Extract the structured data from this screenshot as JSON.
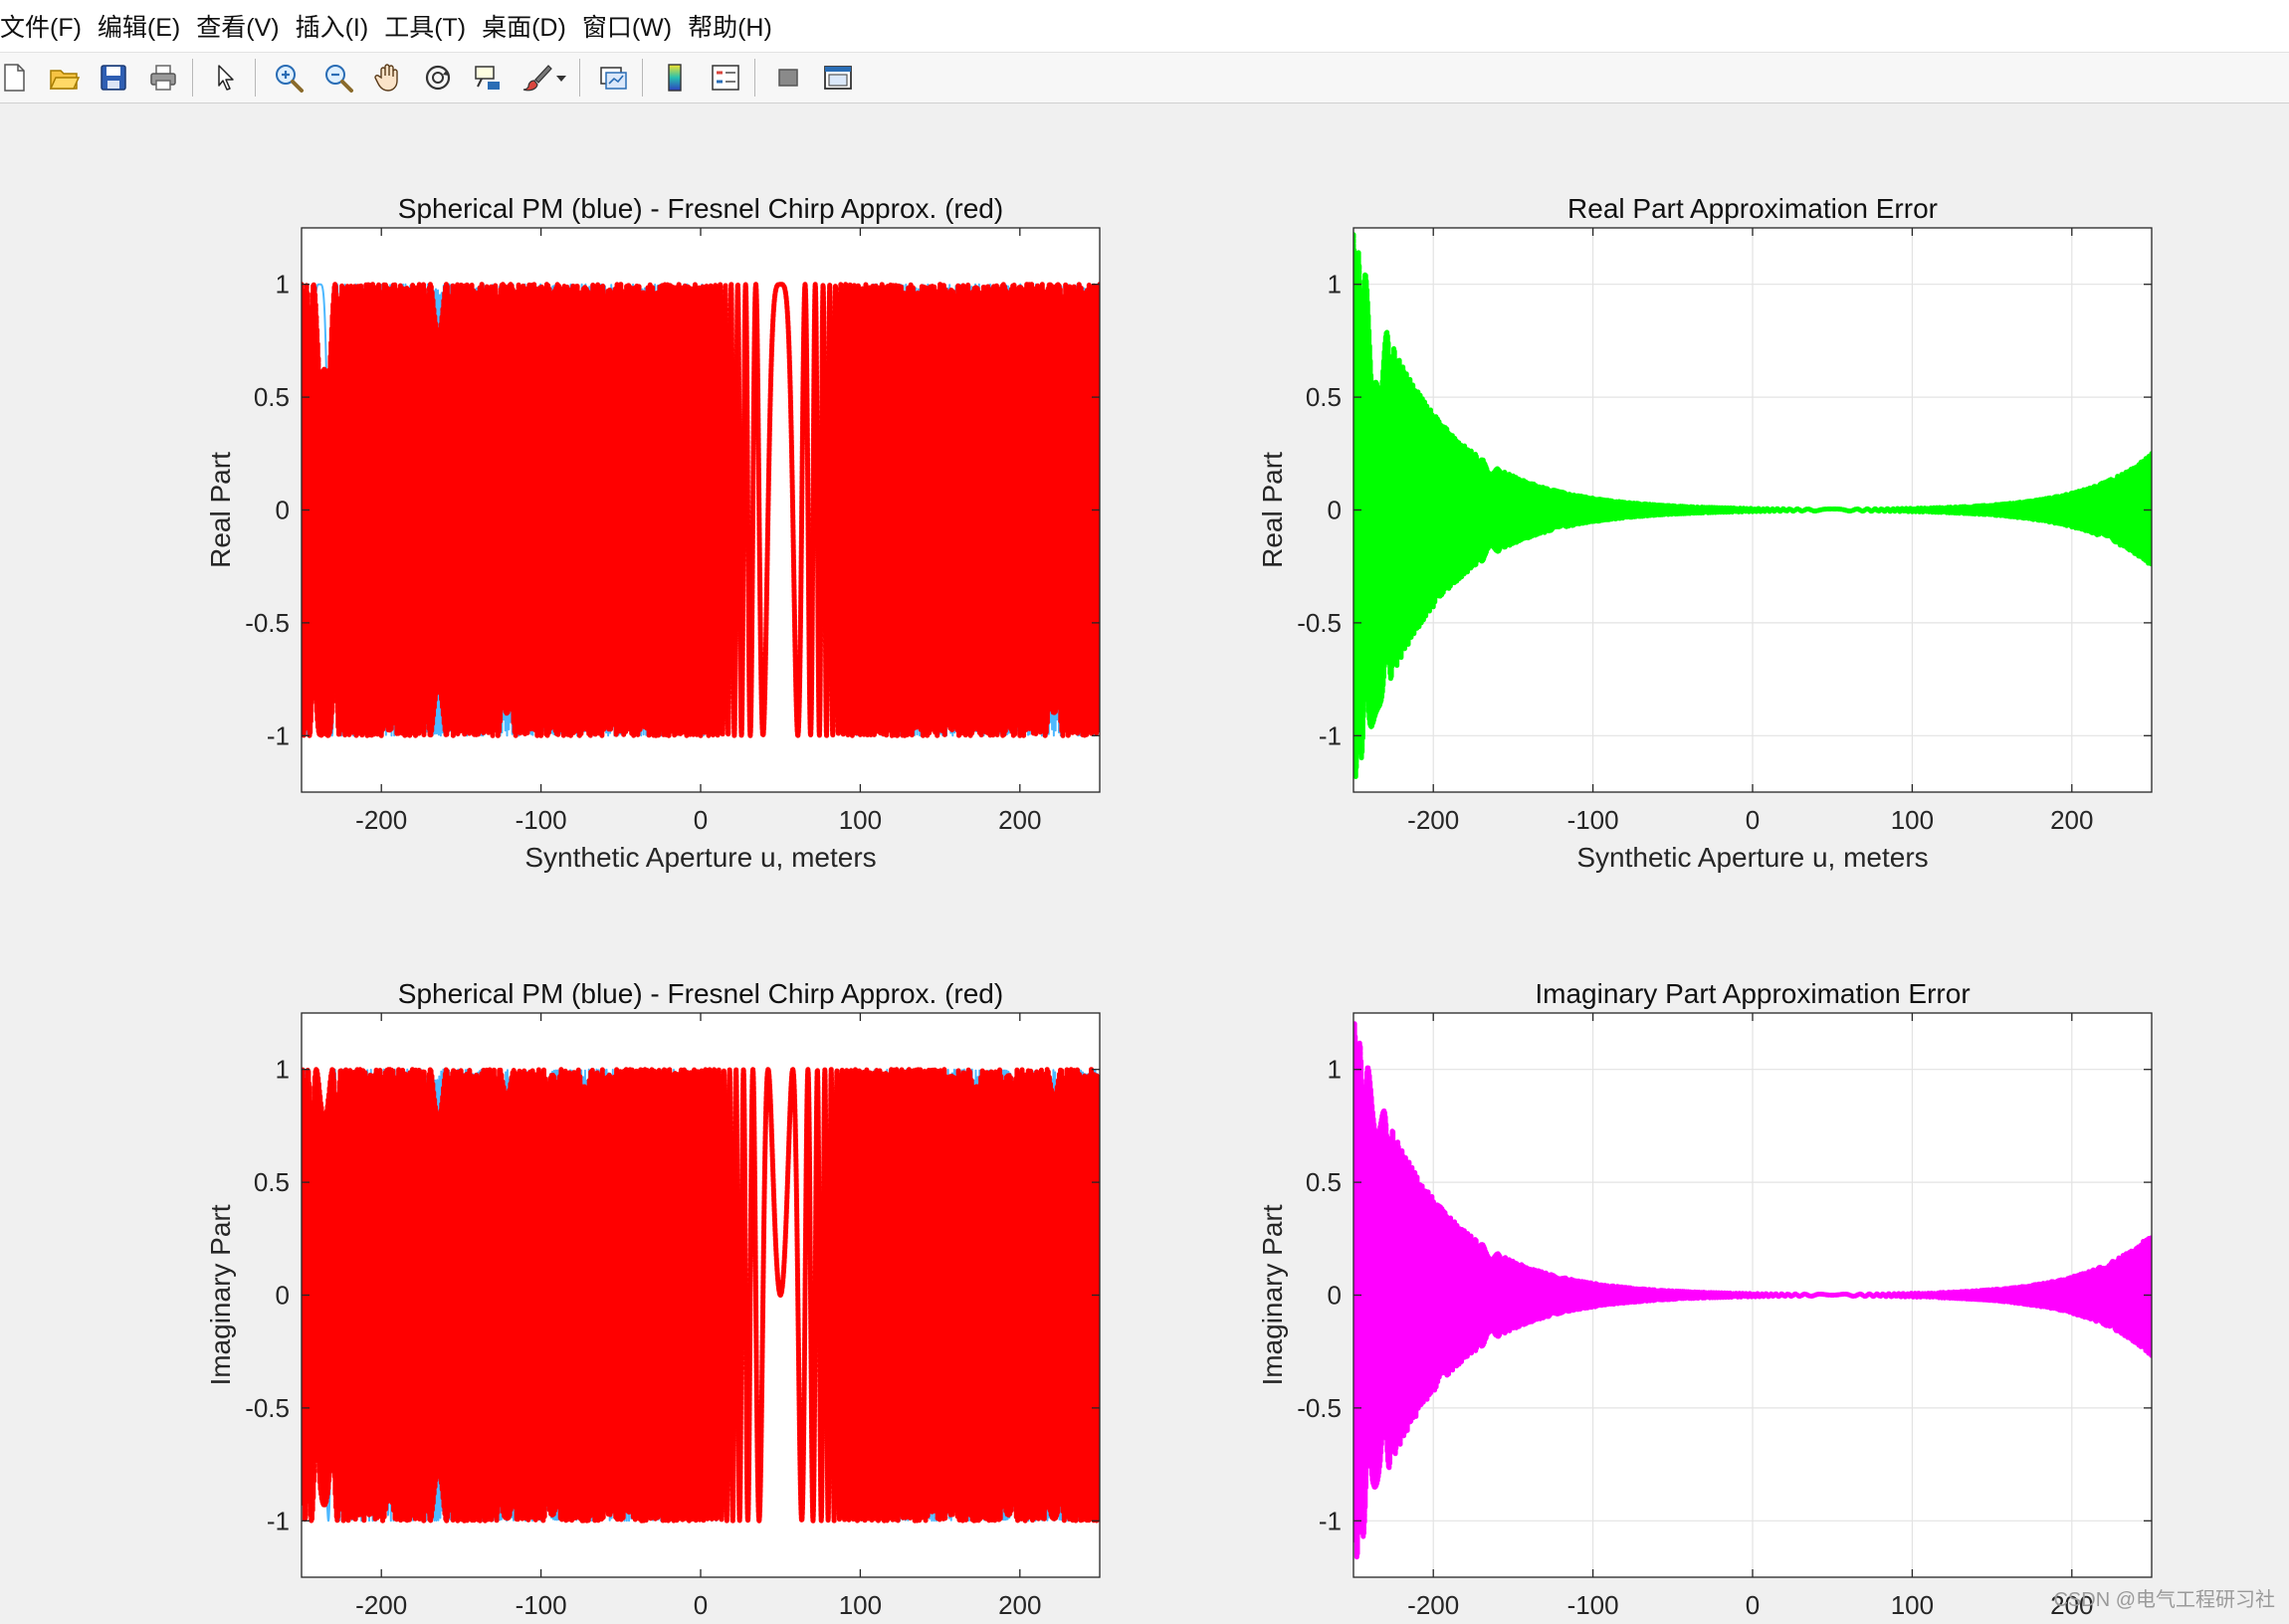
{
  "menu": [
    "文件(F)",
    "编辑(E)",
    "查看(V)",
    "插入(I)",
    "工具(T)",
    "桌面(D)",
    "窗口(W)",
    "帮助(H)"
  ],
  "toolbar": {
    "icons": [
      "new-figure-icon",
      "open-file-icon",
      "save-icon",
      "print-icon",
      "select-arrow-icon",
      "zoom-in-icon",
      "zoom-out-icon",
      "pan-hand-icon",
      "rotate-3d-icon",
      "data-cursor-icon",
      "brush-icon",
      "brush-dropdown-icon",
      "link-plot-icon",
      "colorbar-icon",
      "legend-icon",
      "hide-plot-tools-icon",
      "show-plot-tools-icon"
    ]
  },
  "watermark": "CSDN @电气工程研习社",
  "chart_data": [
    {
      "type": "line",
      "title": "Spherical PM (blue) - Fresnel Chirp Approx. (red)",
      "xlabel": "Synthetic Aperture u, meters",
      "ylabel": "Real Part",
      "xlim": [
        -250,
        250
      ],
      "ylim": [
        -1.25,
        1.25
      ],
      "xticks": [
        "-200",
        "-100",
        "0",
        "100",
        "200"
      ],
      "yticks": [
        "-1",
        "-0.5",
        "0",
        "0.5",
        "1"
      ],
      "grid": false,
      "series": [
        {
          "component": "real",
          "kind": "spherical",
          "color": "#4db8ff",
          "style": "solid",
          "stroke_px": 2,
          "amplitude": 1,
          "center": 50,
          "chirp_k": 0.0042
        },
        {
          "component": "real",
          "kind": "fresnel",
          "color": "#ff0000",
          "style": "dotted",
          "stroke_px": 5,
          "amplitude": 1,
          "center": 50,
          "chirp_k": 0.0042
        }
      ]
    },
    {
      "type": "line",
      "title": "Real Part Approximation Error",
      "xlabel": "Synthetic Aperture u, meters",
      "ylabel": "Real Part",
      "xlim": [
        -250,
        250
      ],
      "ylim": [
        -1.25,
        1.25
      ],
      "xticks": [
        "-200",
        "-100",
        "0",
        "100",
        "200"
      ],
      "yticks": [
        "-1",
        "-0.5",
        "0",
        "0.5",
        "1"
      ],
      "grid": true,
      "series": [
        {
          "component": "real",
          "kind": "error",
          "color": "#00ff00",
          "style": "dotted",
          "stroke_px": 5,
          "center": 50,
          "chirp_k": 0.0042,
          "envelope": {
            "left_at_-250": 1.22,
            "decay_left": 0.0209,
            "right_at_250": 0.25,
            "decay_right": 0.024
          }
        }
      ]
    },
    {
      "type": "line",
      "title": "Spherical PM (blue) - Fresnel Chirp Approx. (red)",
      "xlabel": "",
      "ylabel": "Imaginary Part",
      "xlim": [
        -250,
        250
      ],
      "ylim": [
        -1.25,
        1.25
      ],
      "xticks": [
        "-200",
        "-100",
        "0",
        "100",
        "200"
      ],
      "yticks": [
        "-1",
        "-0.5",
        "0",
        "0.5",
        "1"
      ],
      "grid": false,
      "series": [
        {
          "component": "imag",
          "kind": "spherical",
          "color": "#4db8ff",
          "style": "solid",
          "stroke_px": 2,
          "amplitude": 1,
          "center": 50,
          "chirp_k": 0.0042
        },
        {
          "component": "imag",
          "kind": "fresnel",
          "color": "#ff0000",
          "style": "dotted",
          "stroke_px": 5,
          "amplitude": 1,
          "center": 50,
          "chirp_k": 0.0042
        }
      ]
    },
    {
      "type": "line",
      "title": "Imaginary Part Approximation Error",
      "xlabel": "",
      "ylabel": "Imaginary Part",
      "xlim": [
        -250,
        250
      ],
      "ylim": [
        -1.25,
        1.25
      ],
      "xticks": [
        "-200",
        "-100",
        "0",
        "100",
        "200"
      ],
      "yticks": [
        "-1",
        "-0.5",
        "0",
        "0.5",
        "1"
      ],
      "grid": true,
      "series": [
        {
          "component": "imag",
          "kind": "error",
          "color": "#ff00ff",
          "style": "dotted",
          "stroke_px": 5,
          "center": 50,
          "chirp_k": 0.0042,
          "envelope": {
            "left_at_-250": 1.22,
            "decay_left": 0.0209,
            "right_at_250": 0.27,
            "decay_right": 0.024
          }
        }
      ]
    }
  ]
}
